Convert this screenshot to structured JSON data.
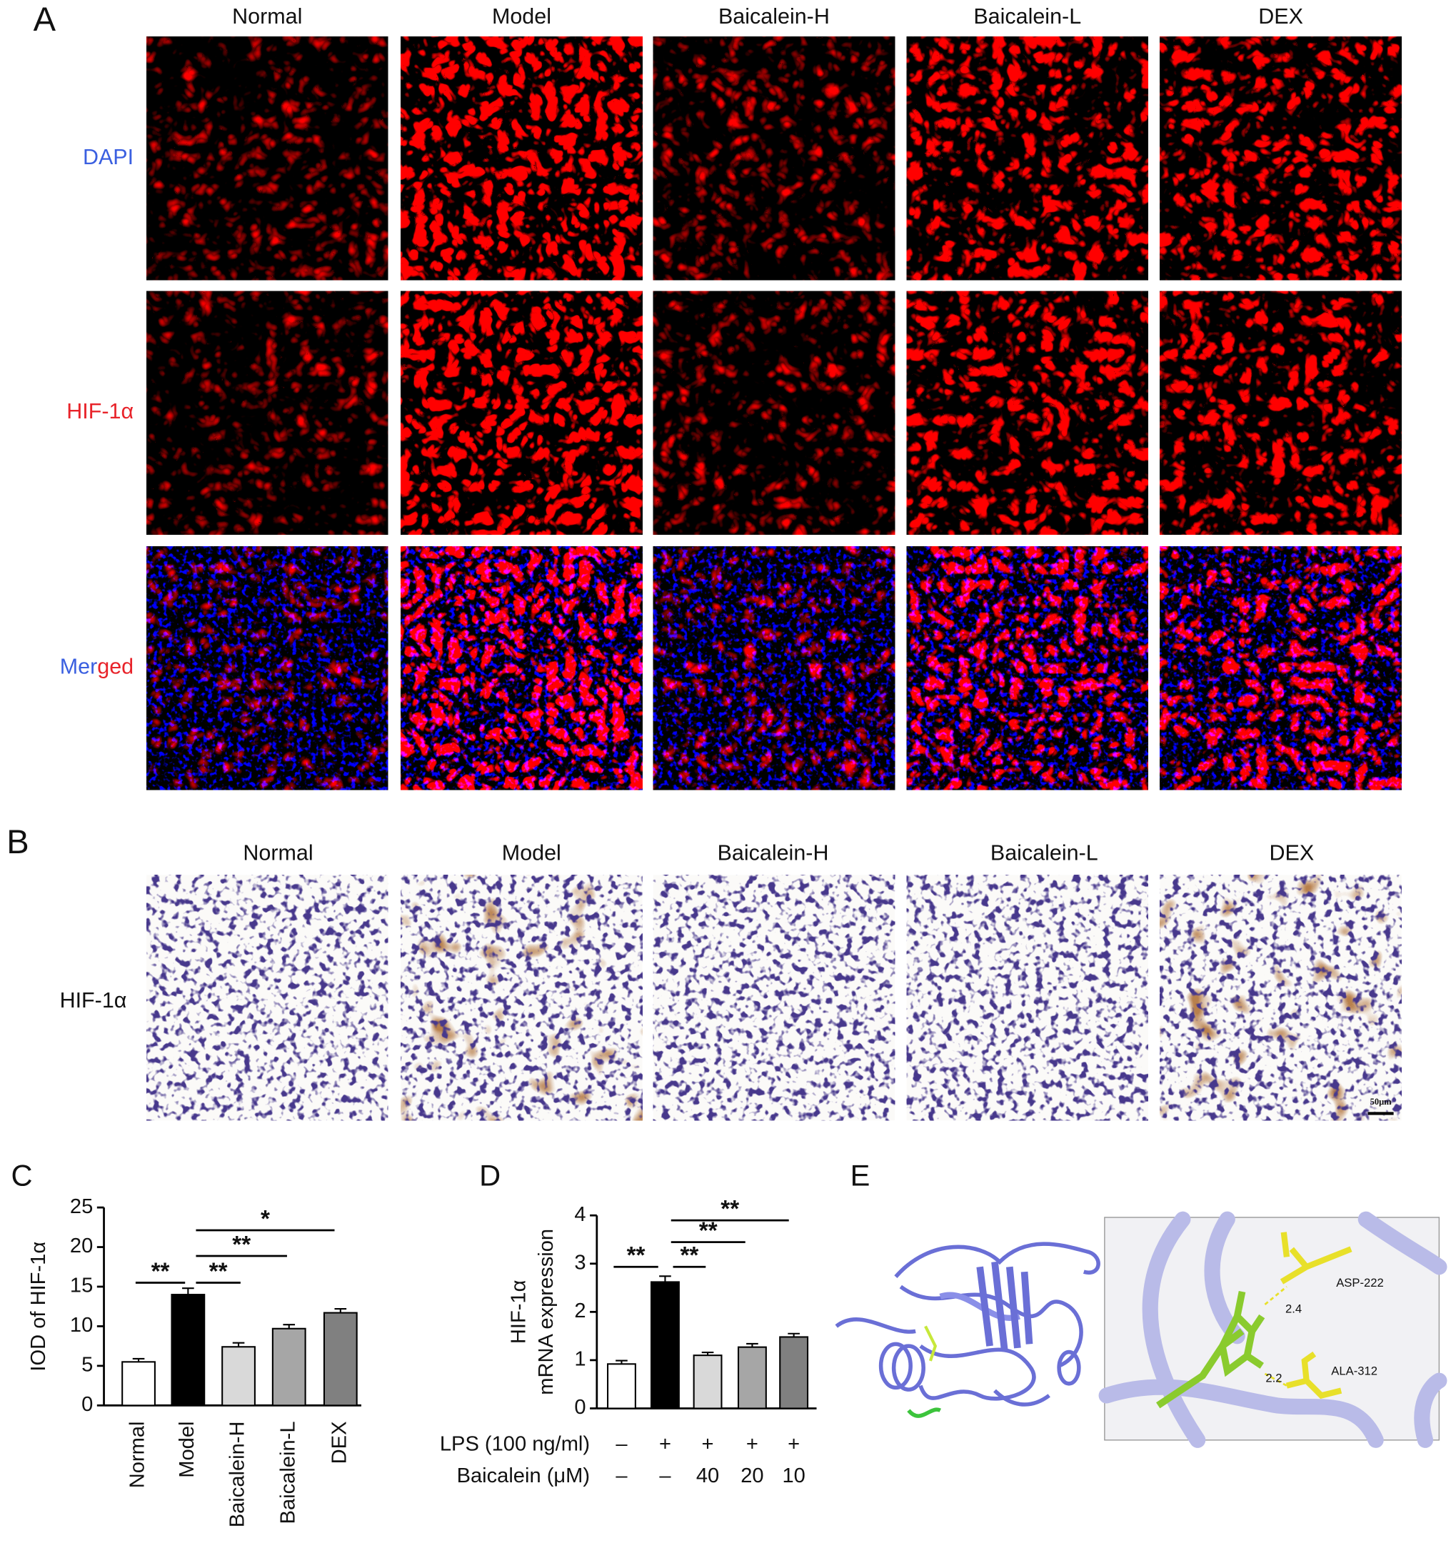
{
  "panels": {
    "A": {
      "label": "A",
      "columns": [
        "Normal",
        "Model",
        "Baicalein-H",
        "Baicalein-L",
        "DEX"
      ],
      "rows": [
        "DAPI",
        "HIF-1α",
        "Merged"
      ]
    },
    "B": {
      "label": "B",
      "columns": [
        "Normal",
        "Model",
        "Baicalein-H",
        "Baicalein-L",
        "DEX"
      ],
      "rows": [
        "HIF-1α"
      ],
      "scale_bar": "50μm"
    },
    "E": {
      "label": "E",
      "residues": [
        "ASP-222",
        "ALA-312"
      ],
      "distances": [
        "2.4",
        "2.2"
      ]
    }
  },
  "chart_data": [
    {
      "type": "bar",
      "label": "C",
      "ylabel": "IOD of HIF-1α",
      "categories": [
        "Normal",
        "Model",
        "Baicalein-H",
        "Baicalein-L",
        "DEX"
      ],
      "values": [
        5.5,
        14,
        7.4,
        9.7,
        11.7
      ],
      "errors": [
        0.4,
        0.8,
        0.5,
        0.5,
        0.5
      ],
      "colors": [
        "#ffffff",
        "#000000",
        "#d9d9d9",
        "#a6a6a6",
        "#808080"
      ],
      "ylim": [
        0,
        25
      ],
      "yticks": [
        0,
        5,
        10,
        15,
        20,
        25
      ],
      "annotations": [
        "**",
        "**",
        "**",
        "*"
      ]
    },
    {
      "type": "bar",
      "label": "D",
      "ylabel": [
        "HIF-1α",
        "mRNA expression"
      ],
      "categories": [
        null,
        null,
        null,
        null,
        null
      ],
      "values": [
        0.92,
        2.62,
        1.1,
        1.27,
        1.48
      ],
      "errors": [
        0.07,
        0.12,
        0.06,
        0.07,
        0.07
      ],
      "colors": [
        "#ffffff",
        "#000000",
        "#d9d9d9",
        "#a6a6a6",
        "#808080"
      ],
      "ylim": [
        0,
        4
      ],
      "yticks": [
        0,
        1,
        2,
        3,
        4
      ],
      "conditions": [
        {
          "name": "LPS (100 ng/ml)",
          "values": [
            "–",
            "+",
            "+",
            "+",
            "+"
          ]
        },
        {
          "name": "Baicalein (μM)",
          "values": [
            "–",
            "–",
            "40",
            "20",
            "10"
          ]
        }
      ],
      "annotations": [
        "**",
        "**",
        "**",
        "**"
      ]
    }
  ]
}
